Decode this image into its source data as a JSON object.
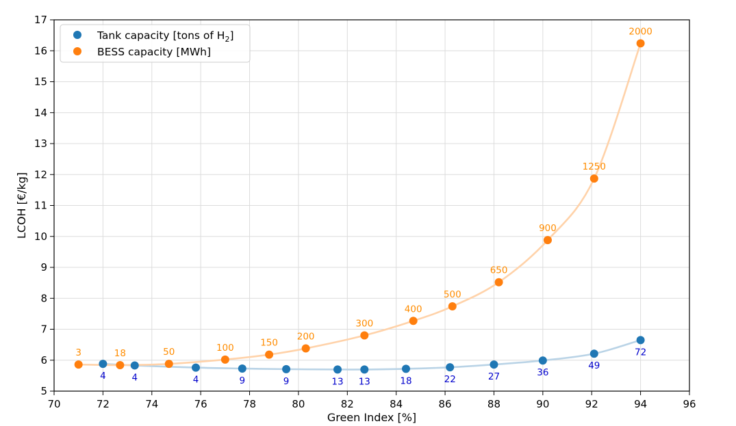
{
  "chart_data": {
    "type": "scatter",
    "title": "",
    "xlabel": "Green Index [%]",
    "ylabel": "LCOH [€/kg]",
    "xlim": [
      70,
      96
    ],
    "ylim": [
      5,
      17
    ],
    "xticks": [
      70,
      72,
      74,
      76,
      78,
      80,
      82,
      84,
      86,
      88,
      90,
      92,
      94,
      96
    ],
    "yticks": [
      5,
      6,
      7,
      8,
      9,
      10,
      11,
      12,
      13,
      14,
      15,
      16,
      17
    ],
    "grid": true,
    "legend_position": "top-left",
    "series": [
      {
        "name": "Tank capacity [tons of H",
        "name_subscript": "2",
        "name_suffix": "]",
        "color": "#1f77b4",
        "line_color": "#b9d3e6",
        "label_color": "#0000cc",
        "label_position": "below",
        "points": [
          {
            "x": 72.0,
            "y": 5.88,
            "label": "4"
          },
          {
            "x": 73.3,
            "y": 5.83,
            "label": "4"
          },
          {
            "x": 75.8,
            "y": 5.76,
            "label": "4"
          },
          {
            "x": 77.7,
            "y": 5.73,
            "label": "9"
          },
          {
            "x": 79.5,
            "y": 5.71,
            "label": "9"
          },
          {
            "x": 81.6,
            "y": 5.7,
            "label": "13"
          },
          {
            "x": 82.7,
            "y": 5.7,
            "label": "13"
          },
          {
            "x": 84.4,
            "y": 5.72,
            "label": "18"
          },
          {
            "x": 86.2,
            "y": 5.77,
            "label": "22"
          },
          {
            "x": 88.0,
            "y": 5.86,
            "label": "27"
          },
          {
            "x": 90.0,
            "y": 5.99,
            "label": "36"
          },
          {
            "x": 92.1,
            "y": 6.21,
            "label": "49"
          },
          {
            "x": 94.0,
            "y": 6.65,
            "label": "72"
          }
        ]
      },
      {
        "name": "BESS capacity [MWh]",
        "color": "#ff7f0e",
        "line_color": "#ffd2a9",
        "label_color": "#ff8c00",
        "label_position": "above",
        "points": [
          {
            "x": 71.0,
            "y": 5.86,
            "label": "3"
          },
          {
            "x": 72.7,
            "y": 5.84,
            "label": "18"
          },
          {
            "x": 74.7,
            "y": 5.88,
            "label": "50"
          },
          {
            "x": 77.0,
            "y": 6.02,
            "label": "100"
          },
          {
            "x": 78.8,
            "y": 6.18,
            "label": "150"
          },
          {
            "x": 80.3,
            "y": 6.38,
            "label": "200"
          },
          {
            "x": 82.7,
            "y": 6.8,
            "label": "300"
          },
          {
            "x": 84.7,
            "y": 7.27,
            "label": "400"
          },
          {
            "x": 86.3,
            "y": 7.74,
            "label": "500"
          },
          {
            "x": 88.2,
            "y": 8.52,
            "label": "650"
          },
          {
            "x": 90.2,
            "y": 9.88,
            "label": "900"
          },
          {
            "x": 92.1,
            "y": 11.87,
            "label": "1250"
          },
          {
            "x": 94.0,
            "y": 16.24,
            "label": "2000"
          }
        ]
      }
    ]
  }
}
